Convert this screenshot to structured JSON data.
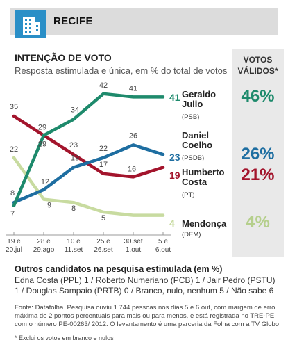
{
  "header": {
    "city": "RECIFE",
    "icon": "building-icon",
    "accent": "#2a8fc7"
  },
  "title": "INTENÇÃO DE VOTO",
  "subtitle": "Resposta estimulada e única, em % do total de votos",
  "valid_votes": {
    "title": "VOTOS VÁLIDOS*",
    "values": [
      {
        "label": "46%",
        "color": "#1e8a6c"
      },
      {
        "label": "26%",
        "color": "#1e6ea1"
      },
      {
        "label": "21%",
        "color": "#a3142c"
      },
      {
        "label": "4%",
        "color": "#b5cf8c"
      }
    ]
  },
  "chart_data": {
    "type": "line",
    "x": [
      "19 e 20.jul",
      "28 e 29.ago",
      "10 e 11.set",
      "25 e 26.set",
      "30.set 1.out",
      "5 e 6.out"
    ],
    "x_lines": [
      [
        "19 e",
        "20.jul"
      ],
      [
        "28 e",
        "29.ago"
      ],
      [
        "10 e",
        "11.set"
      ],
      [
        "25 e",
        "26.set"
      ],
      [
        "30.set",
        "1.out"
      ],
      [
        "5 e",
        "6.out"
      ]
    ],
    "series": [
      {
        "name": "Geraldo Julio",
        "name_lines": [
          "Geraldo",
          "Julio"
        ],
        "party": "(PSB)",
        "color": "#1e8a6c",
        "values": [
          7,
          29,
          34,
          42,
          41,
          41
        ]
      },
      {
        "name": "Daniel Coelho",
        "name_lines": [
          "Daniel",
          "Coelho"
        ],
        "party": "(PSDB)",
        "color": "#1e6ea1",
        "values": [
          8,
          12,
          19,
          22,
          26,
          23
        ]
      },
      {
        "name": "Humberto Costa",
        "name_lines": [
          "Humberto",
          "Costa"
        ],
        "party": "(PT)",
        "color": "#a3142c",
        "values": [
          35,
          29,
          23,
          17,
          16,
          19
        ]
      },
      {
        "name": "Mendonça",
        "name_lines": [
          "Mendonça"
        ],
        "party": "(DEM)",
        "color": "#c8dba0",
        "values": [
          22,
          9,
          8,
          5,
          4,
          4
        ]
      }
    ],
    "ylim": [
      0,
      45
    ],
    "grid": false
  },
  "others": {
    "title": "Outros candidatos na pesquisa estimulada (em %)",
    "text": "Edna Costa (PPL) 1 / Roberto Numeriano (PCB) 1 / Jair Pedro (PSTU) 1 / Douglas Sampaio (PRTB) 0 / Branco, nulo, nenhum 5 / Não sabe 6"
  },
  "source": "Fonte: Datafolha. Pesquisa ouviu 1.744 pessoas nos dias 5 e 6.out, com margem de erro máxima de 2 pontos percentuais para mais ou para menos, e está registrada no TRE-PE com o número PE-00263/ 2012. O levantamento é uma parceria da Folha com a TV Globo",
  "note": "* Exclui os votos em branco e nulos"
}
